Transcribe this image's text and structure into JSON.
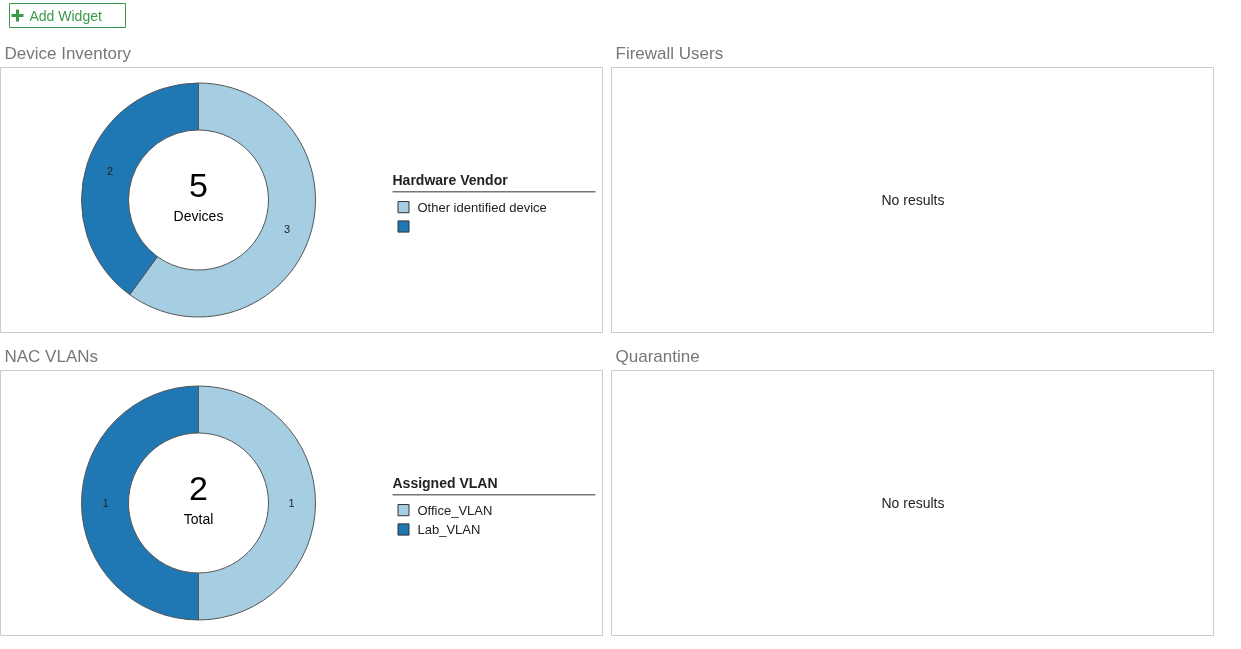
{
  "chart_data": [
    {
      "type": "other",
      "annotations": [
        "Add Widget"
      ]
    },
    {
      "type": "donut",
      "title": "Device Inventory",
      "categories": [
        "Other identified device",
        null
      ],
      "values": [
        3,
        2
      ],
      "colors": [
        "#a6cee3",
        "#1f78b4"
      ],
      "legend_title": "Hardware Vendor",
      "legend": "right",
      "data_labels": true,
      "annotations": [
        "5",
        "Devices"
      ]
    },
    {
      "type": "other",
      "title": "Firewall Users",
      "annotations": [
        "No results"
      ]
    },
    {
      "type": "donut",
      "title": "NAC VLANs",
      "categories": [
        "Office_VLAN",
        "Lab_VLAN"
      ],
      "values": [
        1,
        1
      ],
      "colors": [
        "#a6cee3",
        "#1f78b4"
      ],
      "legend_title": "Assigned VLAN",
      "legend": "right",
      "data_labels": true,
      "annotations": [
        "2",
        "Total"
      ]
    },
    {
      "type": "other",
      "title": "Quarantine",
      "annotations": [
        "No results"
      ]
    }
  ]
}
